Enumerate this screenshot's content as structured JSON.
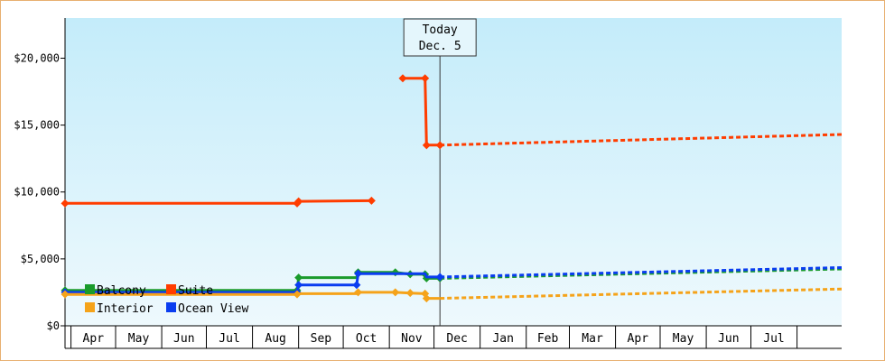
{
  "chart_data": {
    "type": "line",
    "title": "",
    "xlabel": "",
    "ylabel": "",
    "ylim": [
      0,
      23000
    ],
    "y_ticks": [
      {
        "value": 0,
        "label": "$0"
      },
      {
        "value": 5000,
        "label": "$5,000"
      },
      {
        "value": 10000,
        "label": "$10,000"
      },
      {
        "value": 15000,
        "label": "$15,000"
      },
      {
        "value": 20000,
        "label": "$20,000"
      }
    ],
    "x_range": [
      "2015-03-28",
      "2016-08-31"
    ],
    "month_ticks": [
      {
        "label": "Apr",
        "start": "2015-04-01"
      },
      {
        "label": "May",
        "start": "2015-05-01"
      },
      {
        "label": "Jun",
        "start": "2015-06-01"
      },
      {
        "label": "Jul",
        "start": "2015-07-01"
      },
      {
        "label": "Aug",
        "start": "2015-08-01"
      },
      {
        "label": "Sep",
        "start": "2015-09-01"
      },
      {
        "label": "Oct",
        "start": "2015-10-01"
      },
      {
        "label": "Nov",
        "start": "2015-11-01"
      },
      {
        "label": "Dec",
        "start": "2015-12-01"
      },
      {
        "label": "Jan",
        "start": "2016-01-01"
      },
      {
        "label": "Feb",
        "start": "2016-02-01"
      },
      {
        "label": "Mar",
        "start": "2016-03-01"
      },
      {
        "label": "Apr",
        "start": "2016-04-01"
      },
      {
        "label": "May",
        "start": "2016-05-01"
      },
      {
        "label": "Jun",
        "start": "2016-06-01"
      },
      {
        "label": "Jul",
        "start": "2016-07-01"
      },
      {
        "label": "",
        "start": "2016-08-01"
      }
    ],
    "today": {
      "date": "2015-12-05",
      "label_line1": "Today",
      "label_line2": "Dec. 5"
    },
    "legend": {
      "position": "bottom-left",
      "items": [
        {
          "name": "Balcony",
          "color": "#1a9b2b"
        },
        {
          "name": "Suite",
          "color": "#ff3d00"
        },
        {
          "name": "Interior",
          "color": "#f5a31a"
        },
        {
          "name": "Ocean View",
          "color": "#0a3df0"
        }
      ]
    },
    "series": [
      {
        "name": "Suite",
        "color": "#ff3d00",
        "actual": [
          {
            "x": "2015-03-28",
            "y": 9150
          },
          {
            "x": "2015-08-31",
            "y": 9150
          },
          {
            "x": "2015-09-01",
            "y": 9300
          },
          {
            "x": "2015-10-20",
            "y": 9350
          }
        ],
        "actual2": [
          {
            "x": "2015-11-10",
            "y": 18500
          },
          {
            "x": "2015-11-25",
            "y": 18500
          },
          {
            "x": "2015-11-26",
            "y": 13500
          },
          {
            "x": "2015-12-05",
            "y": 13500
          }
        ],
        "forecast": [
          {
            "x": "2015-12-05",
            "y": 13500
          },
          {
            "x": "2016-08-31",
            "y": 14300
          }
        ],
        "markers": [
          {
            "x": "2015-03-28",
            "y": 9150
          },
          {
            "x": "2015-08-31",
            "y": 9150
          },
          {
            "x": "2015-09-01",
            "y": 9300
          },
          {
            "x": "2015-10-20",
            "y": 9350
          },
          {
            "x": "2015-11-10",
            "y": 18500
          },
          {
            "x": "2015-11-25",
            "y": 18500
          },
          {
            "x": "2015-11-26",
            "y": 13500
          },
          {
            "x": "2015-12-05",
            "y": 13500
          }
        ]
      },
      {
        "name": "Balcony",
        "color": "#1a9b2b",
        "actual": [
          {
            "x": "2015-03-28",
            "y": 2650
          },
          {
            "x": "2015-08-31",
            "y": 2650
          },
          {
            "x": "2015-09-01",
            "y": 3600
          },
          {
            "x": "2015-10-10",
            "y": 3600
          },
          {
            "x": "2015-10-11",
            "y": 4000
          },
          {
            "x": "2015-11-05",
            "y": 4000
          },
          {
            "x": "2015-11-15",
            "y": 3850
          },
          {
            "x": "2015-11-25",
            "y": 3850
          },
          {
            "x": "2015-11-26",
            "y": 3550
          },
          {
            "x": "2015-12-05",
            "y": 3550
          }
        ],
        "forecast": [
          {
            "x": "2015-12-05",
            "y": 3550
          },
          {
            "x": "2016-08-31",
            "y": 4250
          }
        ],
        "markers": [
          {
            "x": "2015-03-28",
            "y": 2650
          },
          {
            "x": "2015-08-31",
            "y": 2650
          },
          {
            "x": "2015-09-01",
            "y": 3600
          },
          {
            "x": "2015-10-11",
            "y": 4000
          },
          {
            "x": "2015-11-05",
            "y": 4000
          },
          {
            "x": "2015-11-15",
            "y": 3850
          },
          {
            "x": "2015-11-25",
            "y": 3850
          },
          {
            "x": "2015-11-26",
            "y": 3550
          },
          {
            "x": "2015-12-05",
            "y": 3550
          }
        ]
      },
      {
        "name": "Ocean View",
        "color": "#0a3df0",
        "actual": [
          {
            "x": "2015-03-28",
            "y": 2500
          },
          {
            "x": "2015-08-31",
            "y": 2500
          },
          {
            "x": "2015-09-01",
            "y": 3050
          },
          {
            "x": "2015-10-10",
            "y": 3050
          },
          {
            "x": "2015-10-11",
            "y": 3900
          },
          {
            "x": "2015-11-25",
            "y": 3900
          },
          {
            "x": "2015-11-26",
            "y": 3650
          },
          {
            "x": "2015-12-05",
            "y": 3650
          }
        ],
        "forecast": [
          {
            "x": "2015-12-05",
            "y": 3650
          },
          {
            "x": "2016-08-31",
            "y": 4350
          }
        ],
        "markers": [
          {
            "x": "2015-03-28",
            "y": 2500
          },
          {
            "x": "2015-08-31",
            "y": 2500
          },
          {
            "x": "2015-09-01",
            "y": 3050
          },
          {
            "x": "2015-10-10",
            "y": 3050
          },
          {
            "x": "2015-10-11",
            "y": 3900
          },
          {
            "x": "2015-12-05",
            "y": 3650
          }
        ]
      },
      {
        "name": "Interior",
        "color": "#f5a31a",
        "actual": [
          {
            "x": "2015-03-28",
            "y": 2350
          },
          {
            "x": "2015-08-31",
            "y": 2350
          },
          {
            "x": "2015-09-01",
            "y": 2400
          },
          {
            "x": "2015-10-10",
            "y": 2400
          },
          {
            "x": "2015-10-11",
            "y": 2500
          },
          {
            "x": "2015-11-05",
            "y": 2500
          },
          {
            "x": "2015-11-15",
            "y": 2450
          },
          {
            "x": "2015-11-25",
            "y": 2400
          },
          {
            "x": "2015-11-26",
            "y": 2050
          },
          {
            "x": "2015-12-05",
            "y": 2050
          }
        ],
        "forecast": [
          {
            "x": "2015-12-05",
            "y": 2050
          },
          {
            "x": "2016-08-31",
            "y": 2750
          }
        ],
        "markers": [
          {
            "x": "2015-03-28",
            "y": 2350
          },
          {
            "x": "2015-08-31",
            "y": 2350
          },
          {
            "x": "2015-10-11",
            "y": 2500
          },
          {
            "x": "2015-11-05",
            "y": 2500
          },
          {
            "x": "2015-11-15",
            "y": 2450
          },
          {
            "x": "2015-11-25",
            "y": 2400
          },
          {
            "x": "2015-11-26",
            "y": 2050
          }
        ]
      }
    ]
  }
}
